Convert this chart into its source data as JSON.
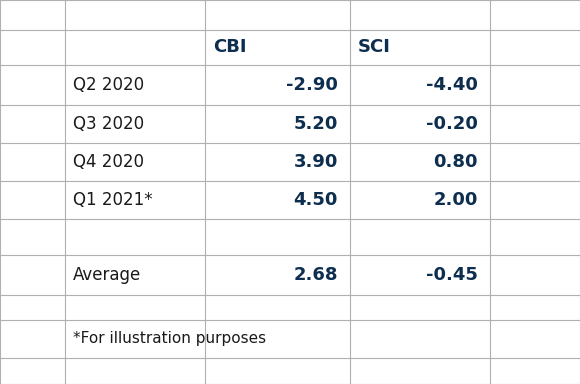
{
  "rows": [
    {
      "label": "Q2 2020",
      "cbi": "-2.90",
      "sci": "-4.40"
    },
    {
      "label": "Q3 2020",
      "cbi": "5.20",
      "sci": "-0.20"
    },
    {
      "label": "Q4 2020",
      "cbi": "3.90",
      "sci": "0.80"
    },
    {
      "label": "Q1 2021*",
      "cbi": "4.50",
      "sci": "2.00"
    }
  ],
  "average_label": "Average",
  "average_cbi": "2.68",
  "average_sci": "-0.45",
  "footnote": "*For illustration purposes",
  "header_color": "#0d2e4e",
  "data_color": "#0d2e4e",
  "label_color": "#1a1a1a",
  "grid_color": "#b0b0b0",
  "bg_color": "#ffffff",
  "header_fontsize": 13,
  "data_fontsize": 13,
  "label_fontsize": 12,
  "footnote_fontsize": 11
}
